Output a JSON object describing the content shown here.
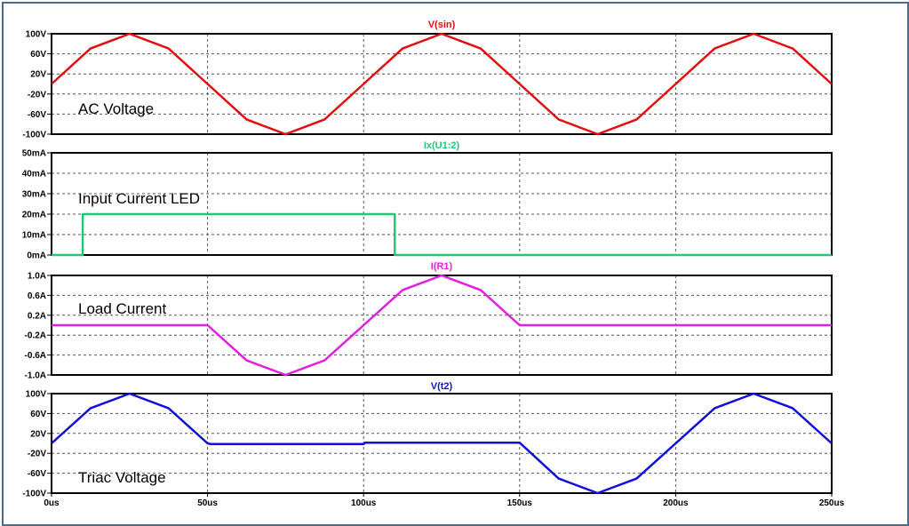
{
  "chart_data": [
    {
      "type": "line",
      "title": "V(sin)",
      "annotation": "AC Voltage",
      "color": "#e01010",
      "ylim": [
        -100,
        100
      ],
      "yticks": [
        "100V",
        "60V",
        "20V",
        "-20V",
        "-60V",
        "-100V"
      ],
      "series": [
        {
          "name": "V(sin)",
          "points": [
            [
              0,
              0
            ],
            [
              12.5,
              70.7
            ],
            [
              25,
              100
            ],
            [
              37.5,
              70.7
            ],
            [
              50,
              0
            ],
            [
              62.5,
              -70.7
            ],
            [
              75,
              -100
            ],
            [
              87.5,
              -70.7
            ],
            [
              100,
              0
            ],
            [
              112.5,
              70.7
            ],
            [
              125,
              100
            ],
            [
              137.5,
              70.7
            ],
            [
              150,
              0
            ],
            [
              162.5,
              -70.7
            ],
            [
              175,
              -100
            ],
            [
              187.5,
              -70.7
            ],
            [
              200,
              0
            ],
            [
              212.5,
              70.7
            ],
            [
              225,
              100
            ],
            [
              237.5,
              70.7
            ],
            [
              250,
              0
            ]
          ]
        }
      ]
    },
    {
      "type": "line",
      "title": "Ix(U1:2)",
      "annotation": "Input Current LED",
      "color": "#20c878",
      "ylim": [
        0,
        50
      ],
      "yticks": [
        "50mA",
        "40mA",
        "30mA",
        "20mA",
        "10mA",
        "0mA"
      ],
      "series": [
        {
          "name": "Ix(U1:2)",
          "points": [
            [
              0,
              0
            ],
            [
              10,
              0
            ],
            [
              10,
              20
            ],
            [
              110,
              20
            ],
            [
              110,
              0
            ],
            [
              250,
              0
            ]
          ]
        }
      ]
    },
    {
      "type": "line",
      "title": "I(R1)",
      "annotation": "Load Current",
      "color": "#e020e0",
      "ylim": [
        -1.0,
        1.0
      ],
      "yticks": [
        "1.0A",
        "0.6A",
        "0.2A",
        "-0.2A",
        "-0.6A",
        "-1.0A"
      ],
      "series": [
        {
          "name": "I(R1)",
          "points": [
            [
              0,
              0
            ],
            [
              50,
              0
            ],
            [
              62.5,
              -0.707
            ],
            [
              75,
              -1.0
            ],
            [
              87.5,
              -0.707
            ],
            [
              100,
              0
            ],
            [
              112.5,
              0.707
            ],
            [
              125,
              1.0
            ],
            [
              137.5,
              0.707
            ],
            [
              150,
              0
            ],
            [
              250,
              0
            ]
          ]
        }
      ]
    },
    {
      "type": "line",
      "title": "V(t2)",
      "annotation": "Triac Voltage",
      "color": "#1010d8",
      "ylim": [
        -100,
        100
      ],
      "yticks": [
        "100V",
        "60V",
        "20V",
        "-20V",
        "-60V",
        "-100V"
      ],
      "series": [
        {
          "name": "V(t2)",
          "points": [
            [
              0,
              0
            ],
            [
              12.5,
              70.7
            ],
            [
              25,
              100
            ],
            [
              37.5,
              70.7
            ],
            [
              50,
              0
            ],
            [
              51,
              -1.5
            ],
            [
              100,
              -1.5
            ],
            [
              100.5,
              1.5
            ],
            [
              150,
              1.5
            ],
            [
              162.5,
              -70.7
            ],
            [
              175,
              -100
            ],
            [
              187.5,
              -70.7
            ],
            [
              200,
              0
            ],
            [
              212.5,
              70.7
            ],
            [
              225,
              100
            ],
            [
              237.5,
              70.7
            ],
            [
              250,
              0
            ]
          ]
        }
      ]
    }
  ],
  "x_axis": {
    "xlim": [
      0,
      250
    ],
    "ticks": [
      "0us",
      "50us",
      "100us",
      "150us",
      "200us",
      "250us"
    ]
  }
}
